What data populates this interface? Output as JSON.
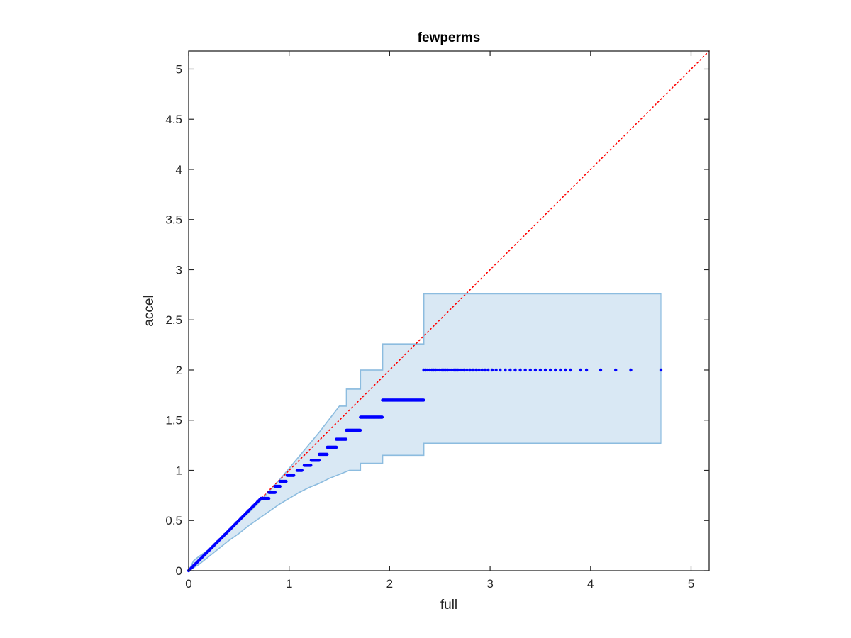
{
  "chart_data": {
    "type": "scatter",
    "title": "fewperms",
    "xlabel": "full",
    "ylabel": "accel",
    "xlim": [
      0,
      5.18
    ],
    "ylim": [
      0,
      5.18
    ],
    "xticks": [
      0,
      1,
      2,
      3,
      4,
      5
    ],
    "xtick_labels": [
      "0",
      "1",
      "2",
      "3",
      "4",
      "5"
    ],
    "yticks": [
      0,
      0.5,
      1,
      1.5,
      2,
      2.5,
      3,
      3.5,
      4,
      4.5,
      5
    ],
    "ytick_labels": [
      "0",
      "0.5",
      "1",
      "1.5",
      "2",
      "2.5",
      "3",
      "3.5",
      "4",
      "4.5",
      "5"
    ],
    "grid": false,
    "box": true,
    "colors": {
      "points": "#0000ff",
      "band_fill": "#d9e8f4",
      "band_edge": "#8cbcdf",
      "reference_line": "#ff0000",
      "axes": "#262626"
    },
    "reference_line": {
      "from": [
        0,
        0
      ],
      "to": [
        5.18,
        5.18
      ],
      "style": "dotted"
    },
    "confidence_band": {
      "upper": [
        [
          0,
          0
        ],
        [
          0.05,
          0.1
        ],
        [
          0.1,
          0.14
        ],
        [
          0.2,
          0.21
        ],
        [
          0.3,
          0.3
        ],
        [
          0.4,
          0.39
        ],
        [
          0.5,
          0.49
        ],
        [
          0.6,
          0.58
        ],
        [
          0.7,
          0.68
        ],
        [
          0.8,
          0.79
        ],
        [
          0.9,
          0.9
        ],
        [
          1.0,
          1.02
        ],
        [
          1.1,
          1.14
        ],
        [
          1.2,
          1.26
        ],
        [
          1.3,
          1.38
        ],
        [
          1.4,
          1.51
        ],
        [
          1.5,
          1.64
        ],
        [
          1.57,
          1.64
        ],
        [
          1.57,
          1.81
        ],
        [
          1.71,
          1.81
        ],
        [
          1.71,
          2.0
        ],
        [
          1.93,
          2.0
        ],
        [
          1.93,
          2.26
        ],
        [
          2.34,
          2.26
        ],
        [
          2.34,
          2.76
        ],
        [
          4.7,
          2.76
        ]
      ],
      "lower": [
        [
          0,
          0
        ],
        [
          0.05,
          0.03
        ],
        [
          0.1,
          0.06
        ],
        [
          0.2,
          0.14
        ],
        [
          0.3,
          0.22
        ],
        [
          0.4,
          0.3
        ],
        [
          0.5,
          0.37
        ],
        [
          0.6,
          0.45
        ],
        [
          0.7,
          0.52
        ],
        [
          0.8,
          0.59
        ],
        [
          0.9,
          0.66
        ],
        [
          1.0,
          0.72
        ],
        [
          1.1,
          0.78
        ],
        [
          1.2,
          0.83
        ],
        [
          1.3,
          0.87
        ],
        [
          1.4,
          0.92
        ],
        [
          1.5,
          0.96
        ],
        [
          1.6,
          1.0
        ],
        [
          1.71,
          1.0
        ],
        [
          1.71,
          1.07
        ],
        [
          1.93,
          1.07
        ],
        [
          1.93,
          1.15
        ],
        [
          2.34,
          1.15
        ],
        [
          2.34,
          1.27
        ],
        [
          4.7,
          1.27
        ]
      ]
    },
    "series": [
      {
        "segments": [
          {
            "x0": 0.0,
            "x1": 0.72,
            "step": 0.012,
            "slope": 1.0
          },
          {
            "x0": 0.72,
            "x1": 0.8,
            "y": 0.72
          },
          {
            "x0": 0.8,
            "x1": 0.86,
            "y": 0.78
          },
          {
            "x0": 0.86,
            "x1": 0.91,
            "y": 0.84
          },
          {
            "x0": 0.91,
            "x1": 0.97,
            "y": 0.89
          },
          {
            "x0": 0.98,
            "x1": 1.05,
            "y": 0.95
          },
          {
            "x0": 1.08,
            "x1": 1.13,
            "y": 1.0
          },
          {
            "x0": 1.15,
            "x1": 1.22,
            "y": 1.05
          },
          {
            "x0": 1.22,
            "x1": 1.3,
            "y": 1.1
          },
          {
            "x0": 1.3,
            "x1": 1.38,
            "y": 1.16
          },
          {
            "x0": 1.38,
            "x1": 1.47,
            "y": 1.23
          },
          {
            "x0": 1.47,
            "x1": 1.57,
            "y": 1.31
          },
          {
            "x0": 1.57,
            "x1": 1.71,
            "y": 1.4
          },
          {
            "x0": 1.71,
            "x1": 1.93,
            "y": 1.53
          },
          {
            "x0": 1.93,
            "x1": 2.34,
            "y": 1.7
          }
        ],
        "tail": {
          "y": 2.0,
          "x": [
            2.34,
            2.36,
            2.38,
            2.4,
            2.42,
            2.44,
            2.46,
            2.48,
            2.5,
            2.52,
            2.54,
            2.56,
            2.58,
            2.6,
            2.62,
            2.64,
            2.66,
            2.68,
            2.7,
            2.72,
            2.74,
            2.77,
            2.8,
            2.83,
            2.86,
            2.89,
            2.92,
            2.95,
            2.98,
            3.02,
            3.06,
            3.1,
            3.15,
            3.2,
            3.25,
            3.3,
            3.35,
            3.4,
            3.45,
            3.5,
            3.55,
            3.6,
            3.65,
            3.7,
            3.75,
            3.8,
            3.9,
            3.96,
            4.1,
            4.25,
            4.4,
            4.7
          ]
        }
      }
    ]
  }
}
